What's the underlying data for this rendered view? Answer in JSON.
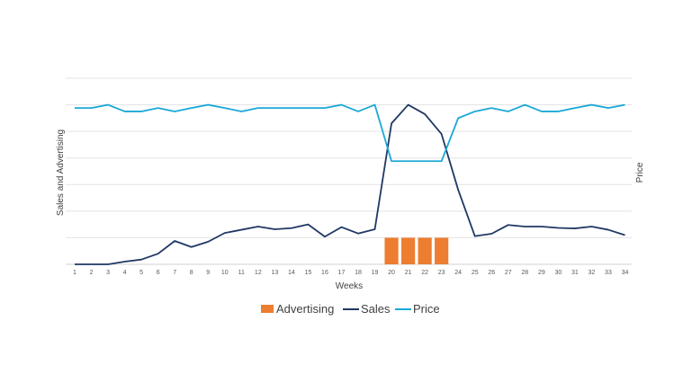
{
  "chart_data": {
    "type": "line",
    "xlabel": "Weeks",
    "ylabel": "Sales and Advertising",
    "y2label": "Price",
    "grid": true,
    "legend_position": "bottom",
    "x": [
      1,
      2,
      3,
      4,
      5,
      6,
      7,
      8,
      9,
      10,
      11,
      12,
      13,
      14,
      15,
      16,
      17,
      18,
      19,
      20,
      21,
      22,
      23,
      24,
      25,
      26,
      27,
      28,
      29,
      30,
      31,
      32,
      33,
      34
    ],
    "ylim": [
      0,
      7
    ],
    "y2lim": [
      0,
      7
    ],
    "series": [
      {
        "name": "Advertising",
        "kind": "bar",
        "axis": "left",
        "color": "#ED7D31",
        "values": [
          0,
          0,
          0,
          0,
          0,
          0,
          0,
          0,
          0,
          0,
          0,
          0,
          0,
          0,
          0,
          0,
          0,
          0,
          0,
          1,
          1,
          1,
          1,
          0,
          0,
          0,
          0,
          0,
          0,
          0,
          0,
          0,
          0,
          0
        ]
      },
      {
        "name": "Sales",
        "kind": "line",
        "axis": "left",
        "color": "#203864",
        "values": [
          0,
          0,
          0,
          0.1,
          0.18,
          0.4,
          0.88,
          0.65,
          0.85,
          1.18,
          1.3,
          1.42,
          1.32,
          1.36,
          1.5,
          1.04,
          1.4,
          1.16,
          1.32,
          5.3,
          6.0,
          5.65,
          4.9,
          2.8,
          1.06,
          1.15,
          1.48,
          1.42,
          1.42,
          1.37,
          1.35,
          1.42,
          1.3,
          1.1
        ]
      },
      {
        "name": "Price",
        "kind": "line",
        "axis": "right",
        "color": "#1BA8D6",
        "values": [
          5.88,
          5.88,
          6.0,
          5.75,
          5.75,
          5.88,
          5.75,
          5.88,
          6.0,
          5.88,
          5.75,
          5.88,
          5.88,
          5.88,
          5.88,
          5.88,
          6.0,
          5.75,
          6.0,
          3.88,
          3.88,
          3.88,
          3.88,
          5.5,
          5.75,
          5.88,
          5.75,
          6.0,
          5.75,
          5.75,
          5.88,
          6.0,
          5.88,
          6.0
        ]
      }
    ]
  }
}
